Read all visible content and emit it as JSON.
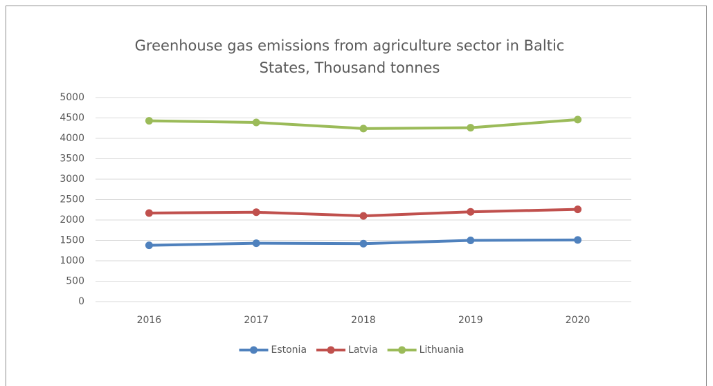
{
  "chart_data": {
    "type": "line",
    "title": "Greenhouse gas emissions from agriculture sector in Baltic States, Thousand tonnes",
    "categories": [
      "2016",
      "2017",
      "2018",
      "2019",
      "2020"
    ],
    "series": [
      {
        "name": "Estonia",
        "color": "#4f81bd",
        "values": [
          1380,
          1430,
          1420,
          1500,
          1510
        ]
      },
      {
        "name": "Latvia",
        "color": "#c0504d",
        "values": [
          2170,
          2190,
          2100,
          2200,
          2260
        ]
      },
      {
        "name": "Lithuania",
        "color": "#9bbb59",
        "values": [
          4430,
          4390,
          4240,
          4260,
          4460
        ]
      }
    ],
    "ylim": [
      0,
      5000
    ],
    "yticks": [
      0,
      500,
      1000,
      1500,
      2000,
      2500,
      3000,
      3500,
      4000,
      4500,
      5000
    ],
    "grid": true,
    "legend": "bottom"
  }
}
